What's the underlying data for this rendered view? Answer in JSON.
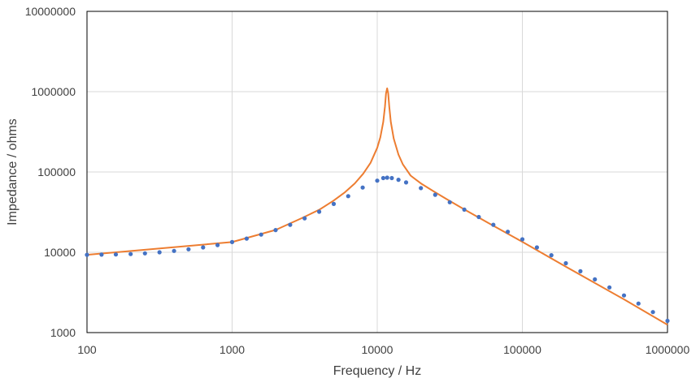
{
  "chart_data": {
    "type": "scatter",
    "title": "",
    "xlabel": "Frequency / Hz",
    "ylabel": "Impedance / ohms",
    "x_scale": "log",
    "y_scale": "log",
    "xlim": [
      100,
      1000000
    ],
    "ylim": [
      1000,
      10000000
    ],
    "x_ticks": [
      "100",
      "1000",
      "10000",
      "100000",
      "1000000"
    ],
    "y_ticks": [
      "1000",
      "10000",
      "100000",
      "1000000",
      "10000000"
    ],
    "grid": true,
    "legend": "none",
    "colors": {
      "measured": "#4472c4",
      "model": "#ed7d31",
      "grid": "#d9d9d9",
      "axis": "#000000"
    },
    "series": [
      {
        "style": "markers",
        "x": [
          100,
          126,
          158,
          200,
          251,
          316,
          398,
          501,
          631,
          794,
          1000,
          1259,
          1585,
          1995,
          2512,
          3162,
          3981,
          5012,
          6310,
          7943,
          10000,
          11000,
          11700,
          12600,
          14000,
          15800,
          20000,
          25100,
          31600,
          39800,
          50100,
          63100,
          79400,
          100000,
          125900,
          158500,
          199500,
          251200,
          316200,
          398100,
          501200,
          631000,
          794300,
          1000000
        ],
        "y": [
          9300,
          9350,
          9400,
          9500,
          9700,
          10000,
          10400,
          10900,
          11500,
          12300,
          13400,
          14800,
          16600,
          18900,
          22000,
          26500,
          32000,
          40000,
          50000,
          64000,
          78000,
          84000,
          85000,
          84000,
          80000,
          74000,
          63000,
          52000,
          42000,
          34000,
          27500,
          22000,
          18000,
          14500,
          11500,
          9200,
          7300,
          5800,
          4600,
          3650,
          2900,
          2300,
          1800,
          1400
        ]
      },
      {
        "style": "line",
        "x": [
          100,
          1000,
          2000,
          3000,
          4000,
          5000,
          6000,
          7000,
          8000,
          9000,
          10000,
          10500,
          11000,
          11300,
          11500,
          11700,
          11900,
          12100,
          12400,
          13000,
          14000,
          15000,
          17000,
          20000,
          25000,
          30000,
          40000,
          60000,
          100000,
          200000,
          500000,
          1000000
        ],
        "y": [
          9300,
          13400,
          19000,
          26500,
          34000,
          44000,
          56000,
          72000,
          95000,
          130000,
          200000,
          270000,
          420000,
          650000,
          950000,
          1100000,
          950000,
          650000,
          420000,
          260000,
          165000,
          125000,
          90000,
          72000,
          56000,
          46000,
          34000,
          22500,
          13500,
          6600,
          2600,
          1250
        ]
      }
    ]
  }
}
